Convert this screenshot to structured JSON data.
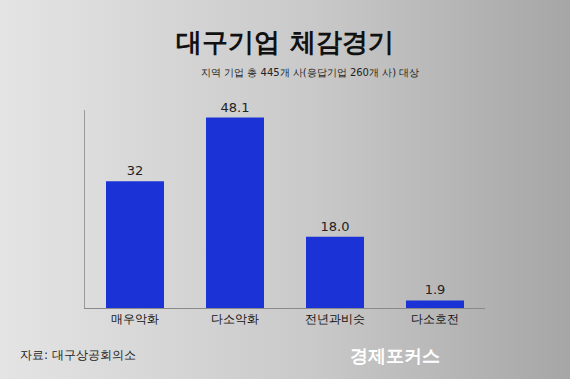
{
  "chart_data": {
    "type": "bar",
    "title": "대구기업 체감경기",
    "subtitle": "지역 기업 총 445개 사(응답기업 260개 사) 대상",
    "categories": [
      "매우악화",
      "다소악화",
      "전년과비슷",
      "다소호전"
    ],
    "values": [
      32,
      48.1,
      18.0,
      1.9
    ],
    "value_labels": [
      "32",
      "48.1",
      "18.0",
      "1.9"
    ],
    "color": "#1b33d6",
    "ylim": [
      0,
      50
    ],
    "data_labels": true,
    "tick_labels": "x",
    "grid": false,
    "source": "자료: 대구상공회의소",
    "credit": "경제포커스"
  }
}
